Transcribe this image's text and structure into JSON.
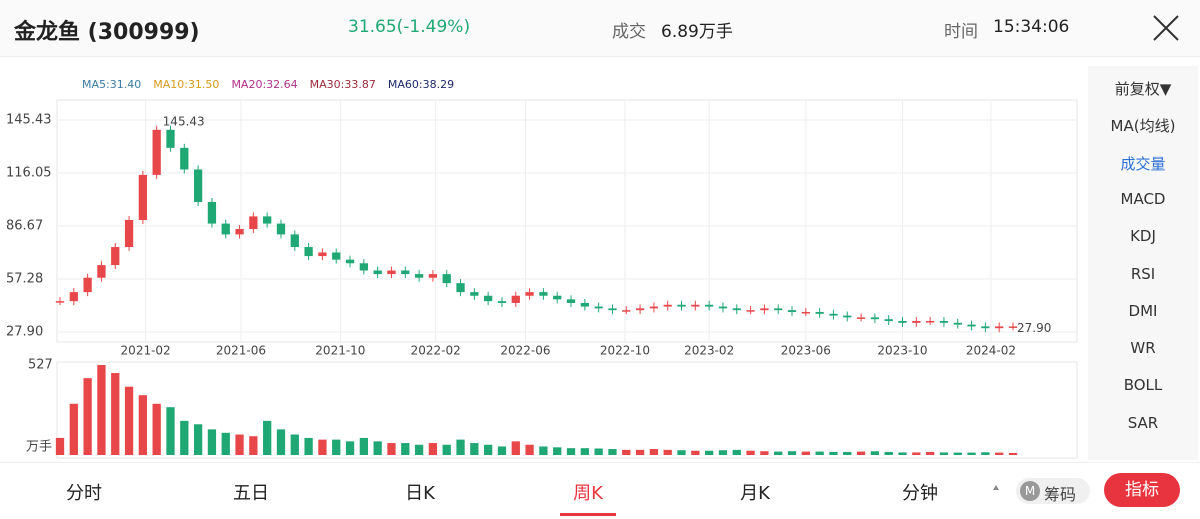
{
  "header": {
    "name": "金龙鱼 (300999)",
    "price": "31.65(-1.49%)",
    "volume_label": "成交",
    "volume": "6.89万手",
    "time_label": "时间",
    "time": "15:34:06"
  },
  "chart": {
    "ma_legend": [
      {
        "text": "MA5:31.40",
        "color": "#3a7ca5"
      },
      {
        "text": "MA10:31.50",
        "color": "#d49a1a"
      },
      {
        "text": "MA20:32.64",
        "color": "#b0308a"
      },
      {
        "text": "MA30:33.87",
        "color": "#9a2a3a"
      },
      {
        "text": "MA60:38.29",
        "color": "#1f2a6a"
      }
    ],
    "ylim": [
      27.9,
      145.43
    ],
    "yticks": [
      {
        "value": 27.9,
        "label": "27.90"
      },
      57.28,
      86.67,
      116.05,
      145.43
    ],
    "xticks": [
      {
        "value": 6.2,
        "label": "2021-02"
      },
      {
        "value": 13.1,
        "label": "2021-06"
      },
      {
        "value": 20.3,
        "label": "2021-10"
      },
      {
        "value": 27.2,
        "label": "2022-02"
      },
      {
        "value": 33.7,
        "label": "2022-06"
      },
      {
        "value": 40.9,
        "label": "2022-10"
      },
      {
        "value": 47,
        "label": "2023-02"
      },
      {
        "value": 54,
        "label": "2023-06"
      },
      {
        "value": 61,
        "label": "2023-10"
      },
      {
        "value": 67.4,
        "label": "2024-02"
      }
    ],
    "annotations": [
      "145.43",
      "27.90"
    ],
    "up_color": "#e8474a",
    "down_color": "#1fa874",
    "close": [
      45,
      50,
      58,
      65,
      75,
      90,
      115,
      140,
      130,
      118,
      100,
      88,
      82,
      85,
      92,
      88,
      82,
      75,
      70,
      72,
      68,
      66,
      62,
      60,
      62,
      60,
      58,
      60,
      55,
      50,
      48,
      45,
      44,
      48,
      50,
      48,
      46,
      44,
      42,
      41,
      40,
      40,
      41,
      42,
      43,
      42,
      43,
      42,
      41,
      40,
      40,
      41,
      40,
      39,
      39,
      38,
      37,
      36,
      36,
      35,
      34,
      33,
      34,
      34,
      33,
      32,
      31,
      30,
      31,
      31
    ],
    "volume": [
      100,
      300,
      450,
      527,
      480,
      400,
      350,
      300,
      280,
      200,
      180,
      150,
      130,
      120,
      110,
      200,
      150,
      120,
      100,
      90,
      90,
      80,
      100,
      80,
      70,
      70,
      60,
      70,
      60,
      90,
      70,
      60,
      50,
      80,
      60,
      50,
      45,
      40,
      40,
      38,
      35,
      30,
      30,
      35,
      30,
      28,
      25,
      25,
      28,
      30,
      25,
      22,
      20,
      22,
      20,
      20,
      18,
      18,
      20,
      22,
      18,
      15,
      15,
      18,
      15,
      14,
      14,
      16,
      14,
      12
    ],
    "vol_ylim": [
      0,
      527
    ],
    "vol_yticks": [
      527
    ],
    "vol_unit": "万手"
  },
  "sidebar": [
    "前复权▼",
    "MA(均线)",
    "成交量",
    "MACD",
    "KDJ",
    "RSI",
    "DMI",
    "WR",
    "BOLL",
    "SAR"
  ],
  "tabs": [
    "分时",
    "五日",
    "日K",
    "周K",
    "月K",
    "分钟"
  ],
  "chips": "筹码",
  "button": "指标"
}
